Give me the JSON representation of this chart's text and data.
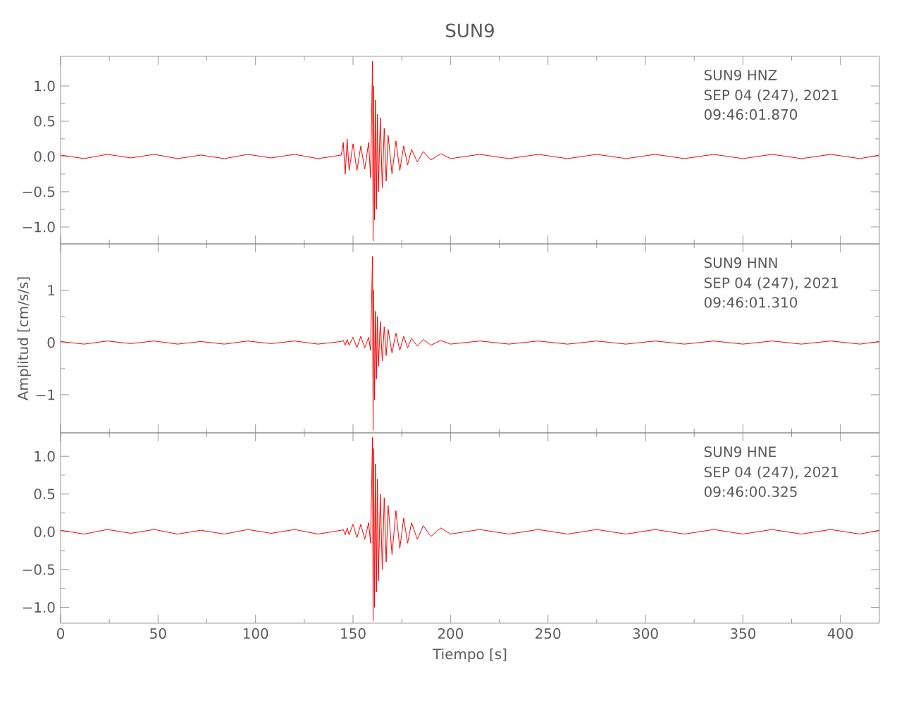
{
  "chart_data": [
    {
      "type": "line",
      "title": "SUN9",
      "xlim": [
        0,
        420
      ],
      "ylim": [
        -1.24,
        1.42
      ],
      "xticks": [
        0,
        50,
        100,
        150,
        200,
        250,
        300,
        350,
        400
      ],
      "yticks": [
        {
          "value": -1,
          "label": "−1.0"
        },
        {
          "value": -0.5,
          "label": "−0.5"
        },
        {
          "value": 0,
          "label": "0.0"
        },
        {
          "value": 0.5,
          "label": "0.5"
        },
        {
          "value": 1,
          "label": "1.0"
        }
      ],
      "tick_labels": "y",
      "annotations": [
        "SUN9   HNZ",
        "SEP 04 (247), 2021",
        "09:46:01.870"
      ],
      "series": [
        {
          "color": "#ff0000",
          "x": [
            0,
            12,
            24,
            36,
            48,
            60,
            72,
            84,
            96,
            108,
            120,
            132,
            144,
            145,
            146,
            147,
            148,
            150,
            152,
            154,
            156,
            158,
            159,
            160,
            160.3,
            160.6,
            161,
            161.5,
            162,
            162.5,
            163,
            164,
            165,
            166,
            167,
            168,
            170,
            172,
            174,
            176,
            178,
            180,
            183,
            186,
            190,
            195,
            200,
            215,
            230,
            245,
            260,
            275,
            290,
            305,
            320,
            335,
            350,
            365,
            380,
            395,
            410,
            420
          ],
          "values": [
            0.02,
            -0.03,
            0.03,
            -0.02,
            0.03,
            -0.03,
            0.02,
            -0.03,
            0.03,
            -0.02,
            0.03,
            -0.03,
            0.02,
            0.2,
            -0.25,
            0.25,
            -0.2,
            0.18,
            -0.2,
            0.15,
            -0.18,
            0.2,
            -0.3,
            1.35,
            -1.2,
            1.0,
            -0.9,
            0.8,
            -0.75,
            0.6,
            -0.5,
            0.55,
            -0.45,
            0.4,
            -0.35,
            0.3,
            -0.25,
            0.22,
            -0.2,
            0.15,
            -0.12,
            0.1,
            -0.08,
            0.07,
            -0.05,
            0.04,
            -0.03,
            0.03,
            -0.03,
            0.03,
            -0.03,
            0.03,
            -0.03,
            0.03,
            -0.03,
            0.03,
            -0.03,
            0.03,
            -0.03,
            0.03,
            -0.03,
            0.02
          ]
        }
      ]
    },
    {
      "type": "line",
      "ylabel": "Amplitud [cm/s/s]",
      "xlim": [
        0,
        420
      ],
      "ylim": [
        -1.73,
        1.89
      ],
      "xticks": [
        0,
        50,
        100,
        150,
        200,
        250,
        300,
        350,
        400
      ],
      "yticks": [
        {
          "value": -1,
          "label": "−1"
        },
        0,
        1
      ],
      "tick_labels": "y",
      "annotations": [
        "SUN9   HNN",
        "SEP 04 (247), 2021",
        "09:46:01.310"
      ],
      "series": [
        {
          "color": "#ff0000",
          "x": [
            0,
            12,
            24,
            36,
            48,
            60,
            72,
            84,
            96,
            108,
            120,
            132,
            144,
            145,
            146,
            147,
            148,
            150,
            152,
            154,
            156,
            158,
            159,
            160,
            160.3,
            160.6,
            161,
            161.5,
            162,
            162.5,
            163,
            164,
            165,
            166,
            167,
            168,
            170,
            172,
            174,
            176,
            178,
            180,
            183,
            186,
            190,
            195,
            200,
            215,
            230,
            245,
            260,
            275,
            290,
            305,
            320,
            335,
            350,
            365,
            380,
            395,
            410,
            420
          ],
          "values": [
            0.02,
            -0.03,
            0.03,
            -0.02,
            0.03,
            -0.03,
            0.02,
            -0.03,
            0.03,
            -0.02,
            0.03,
            -0.03,
            0.02,
            0.04,
            -0.05,
            0.06,
            -0.05,
            0.1,
            -0.1,
            0.12,
            -0.1,
            0.1,
            -0.15,
            1.65,
            -1.68,
            1.0,
            -1.1,
            0.6,
            -0.7,
            0.5,
            -0.45,
            0.4,
            -0.35,
            0.3,
            -0.25,
            0.25,
            -0.2,
            0.18,
            -0.15,
            0.12,
            -0.1,
            0.08,
            -0.07,
            0.06,
            -0.05,
            0.04,
            -0.03,
            0.03,
            -0.03,
            0.03,
            -0.03,
            0.03,
            -0.03,
            0.03,
            -0.03,
            0.03,
            -0.03,
            0.03,
            -0.03,
            0.03,
            -0.03,
            0.02
          ]
        }
      ]
    },
    {
      "type": "line",
      "xlabel": "Tiempo [s]",
      "xlim": [
        0,
        420
      ],
      "ylim": [
        -1.21,
        1.31
      ],
      "xticks": [
        0,
        50,
        100,
        150,
        200,
        250,
        300,
        350,
        400
      ],
      "yticks": [
        {
          "value": -1,
          "label": "−1.0"
        },
        {
          "value": -0.5,
          "label": "−0.5"
        },
        {
          "value": 0,
          "label": "0.0"
        },
        {
          "value": 0.5,
          "label": "0.5"
        },
        {
          "value": 1,
          "label": "1.0"
        }
      ],
      "annotations": [
        "SUN9   HNE",
        "SEP 04 (247), 2021",
        "09:46:00.325"
      ],
      "series": [
        {
          "color": "#ff0000",
          "x": [
            0,
            12,
            24,
            36,
            48,
            60,
            72,
            84,
            96,
            108,
            120,
            132,
            144,
            145,
            146,
            147,
            148,
            150,
            152,
            154,
            156,
            158,
            159,
            160,
            160.3,
            160.6,
            161,
            161.5,
            162,
            162.5,
            163,
            164,
            165,
            166,
            167,
            168,
            170,
            172,
            174,
            176,
            178,
            180,
            183,
            186,
            190,
            195,
            200,
            215,
            230,
            245,
            260,
            275,
            290,
            305,
            320,
            335,
            350,
            365,
            380,
            395,
            410,
            420
          ],
          "values": [
            0.02,
            -0.03,
            0.03,
            -0.02,
            0.03,
            -0.03,
            0.02,
            -0.03,
            0.03,
            -0.02,
            0.03,
            -0.03,
            0.02,
            0.03,
            -0.04,
            0.05,
            -0.04,
            0.1,
            -0.08,
            0.1,
            -0.1,
            0.12,
            -0.15,
            1.25,
            -1.18,
            1.1,
            -1.0,
            0.9,
            -0.8,
            0.7,
            -0.65,
            0.5,
            -0.5,
            0.45,
            -0.4,
            0.35,
            -0.3,
            0.28,
            -0.22,
            0.18,
            -0.15,
            0.12,
            -0.1,
            0.08,
            -0.06,
            0.05,
            -0.03,
            0.03,
            -0.03,
            0.03,
            -0.03,
            0.03,
            -0.03,
            0.03,
            -0.03,
            0.03,
            -0.03,
            0.03,
            -0.03,
            0.03,
            -0.03,
            0.02
          ]
        }
      ]
    }
  ]
}
